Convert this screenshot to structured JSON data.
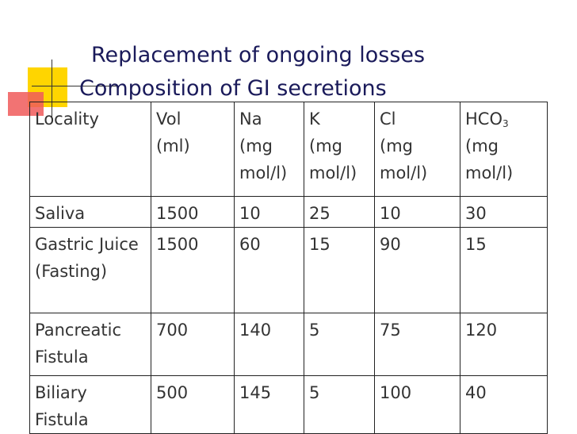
{
  "title": {
    "line1": "Replacement of ongoing losses",
    "line2": "Composition of GI secretions"
  },
  "table": {
    "header": [
      {
        "name": "Locality"
      },
      {
        "name": "Vol",
        "unit": "(ml)"
      },
      {
        "name": "Na",
        "unit": "(mg mol/l)"
      },
      {
        "name": "K",
        "unit": "(mg mol/l)"
      },
      {
        "name": "Cl",
        "unit": "(mg mol/l)"
      },
      {
        "name": "HCO",
        "sub": "3",
        "unit": "(mg mol/l)"
      }
    ],
    "rows": [
      [
        "Saliva",
        1500,
        10,
        25,
        10,
        30
      ],
      [
        "Gastric Juice (Fasting)",
        1500,
        60,
        15,
        90,
        15
      ],
      [
        "Pancreatic Fistula",
        700,
        140,
        5,
        75,
        120
      ],
      [
        "Biliary Fistula",
        500,
        145,
        5,
        100,
        40
      ]
    ]
  }
}
